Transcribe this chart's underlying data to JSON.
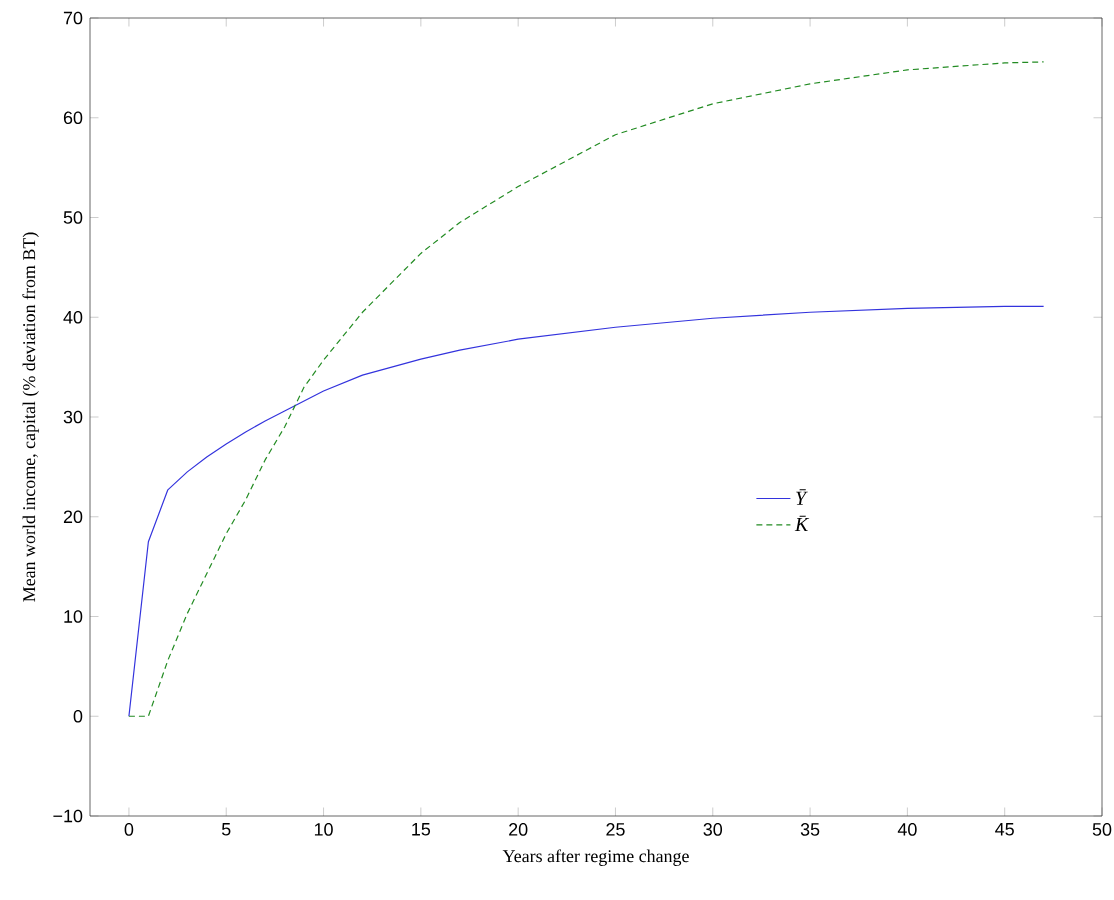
{
  "chart_data": {
    "type": "line",
    "xlabel": "Years after regime change",
    "ylabel": "Mean world income, capital (% deviation from BT)",
    "xlim": [
      -2,
      50
    ],
    "ylim": [
      -10,
      70
    ],
    "xticks": [
      0,
      5,
      10,
      15,
      20,
      25,
      30,
      35,
      40,
      45,
      50
    ],
    "yticks": [
      {
        "value": -10,
        "label": "−10"
      },
      0,
      10,
      20,
      30,
      40,
      50,
      60,
      70
    ],
    "legend": "right",
    "grid": false,
    "series": [
      {
        "name": "Ȳ",
        "color": "#3333dd",
        "line_style": "solid",
        "x": [
          0,
          1,
          2,
          3,
          4,
          5,
          6,
          7,
          8,
          10,
          12,
          15,
          17,
          20,
          25,
          30,
          35,
          40,
          45,
          47
        ],
        "values": [
          0,
          17.5,
          22.7,
          24.5,
          26,
          27.3,
          28.5,
          29.6,
          30.6,
          32.6,
          34.2,
          35.8,
          36.7,
          37.8,
          39,
          39.9,
          40.5,
          40.9,
          41.1,
          41.1
        ]
      },
      {
        "name": "K̄",
        "color": "#228b22",
        "line_style": "dashed",
        "x": [
          0,
          1,
          2,
          3,
          4,
          5,
          6,
          7,
          8,
          9,
          10,
          12,
          15,
          17,
          20,
          25,
          30,
          35,
          40,
          45,
          47
        ],
        "values": [
          0,
          0,
          5.6,
          10.3,
          14.3,
          18.3,
          21.7,
          25.7,
          29,
          33,
          35.7,
          40.5,
          46.4,
          49.5,
          53.1,
          58.3,
          61.4,
          63.4,
          64.8,
          65.5,
          65.6
        ]
      }
    ]
  }
}
